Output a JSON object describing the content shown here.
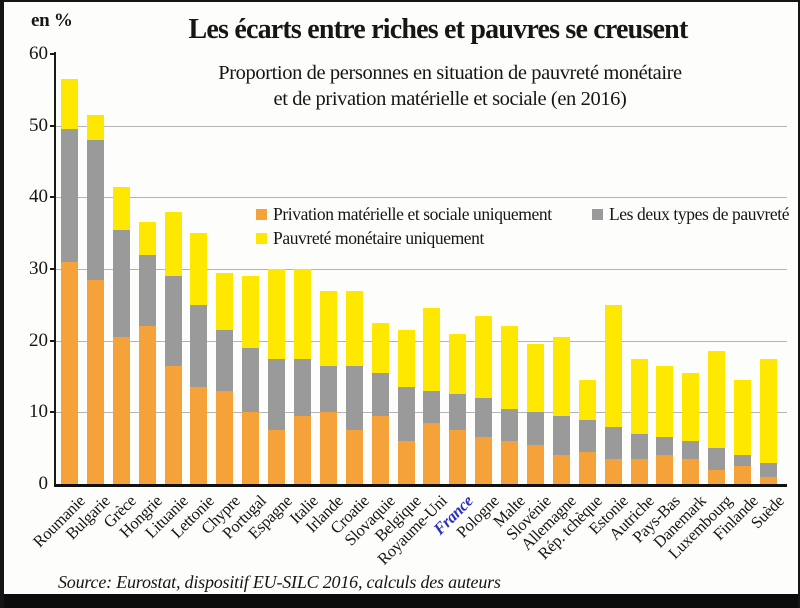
{
  "source": {
    "text": "Source: Eurostat, dispositif EU-SILC 2016, calculs des auteurs"
  },
  "colors": {
    "orange": "#F6A23B",
    "gray": "#9A9A9A",
    "yellow": "#FFE800",
    "france_label": "#2B2FC0",
    "axis": "#1a1a1a",
    "grid": "#b4b4b4"
  },
  "chart_data": {
    "type": "bar",
    "stacked": true,
    "title": "Les écarts entre riches et pauvres se creusent",
    "subtitle_lines": [
      "Proportion de personnes en situation de pauvreté monétaire",
      "et de privation matérielle et sociale (en 2016)"
    ],
    "unit_label": "en %",
    "ylim": [
      0,
      60
    ],
    "yticks": [
      0,
      10,
      20,
      30,
      40,
      50,
      60
    ],
    "grid": "horizontal",
    "legend_position": "inside-upper-middle",
    "highlighted_category": "France",
    "categories": [
      "Roumanie",
      "Bulgarie",
      "Grèce",
      "Hongrie",
      "Lituanie",
      "Lettonie",
      "Chypre",
      "Portugal",
      "Espagne",
      "Italie",
      "Irlande",
      "Croatie",
      "Slovaquie",
      "Belgique",
      "Royaume-Uni",
      "France",
      "Pologne",
      "Malte",
      "Slovénie",
      "Allemagne",
      "Rép. tchèque",
      "Estonie",
      "Autriche",
      "Pays-Bas",
      "Danemark",
      "Luxembourg",
      "Finlande",
      "Suède"
    ],
    "stack_order_bottom_to_top": [
      "Privation matérielle et sociale uniquement",
      "Les deux types de pauvreté",
      "Pauvreté monétaire uniquement"
    ],
    "series": [
      {
        "name": "Privation matérielle et sociale uniquement",
        "color": "#F6A23B",
        "values": [
          31,
          28.5,
          20.5,
          22,
          16.5,
          13.5,
          13,
          10,
          7.5,
          9.5,
          10,
          7.5,
          9.5,
          6,
          8.5,
          7.5,
          6.5,
          6,
          5.5,
          4,
          4.5,
          3.5,
          3.5,
          4,
          3.5,
          2,
          2.5,
          1
        ]
      },
      {
        "name": "Les deux types de pauvreté",
        "color": "#9A9A9A",
        "values": [
          18.5,
          19.5,
          15,
          10,
          12.5,
          11.5,
          8.5,
          9,
          10,
          8,
          6.5,
          9,
          6,
          7.5,
          4.5,
          5,
          5.5,
          4.5,
          4.5,
          5.5,
          4.5,
          4.5,
          3.5,
          2.5,
          2.5,
          3,
          1.5,
          2
        ]
      },
      {
        "name": "Pauvreté monétaire uniquement",
        "color": "#FFE800",
        "values": [
          7,
          3.5,
          6,
          4.5,
          9,
          10,
          8,
          10,
          12.5,
          12.5,
          10.5,
          10.5,
          7,
          8,
          11.5,
          8.5,
          11.5,
          11.5,
          9.5,
          11,
          5.5,
          17,
          10.5,
          10,
          9.5,
          13.5,
          10.5,
          14.5
        ]
      }
    ],
    "totals": [
      56.5,
      51.5,
      41.5,
      36.5,
      38,
      35,
      29.5,
      29,
      30,
      30,
      27,
      27,
      22.5,
      21.5,
      24.5,
      21,
      23.5,
      22,
      19.5,
      20.5,
      14.5,
      25,
      17.5,
      16.5,
      15.5,
      18.5,
      14.5,
      17.5
    ]
  }
}
